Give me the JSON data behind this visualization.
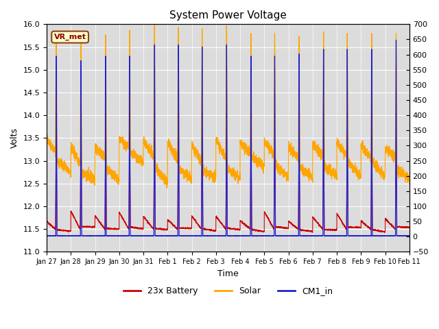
{
  "title": "System Power Voltage",
  "xlabel": "Time",
  "ylabel": "Volts",
  "ylim_left": [
    11.0,
    16.0
  ],
  "ylim_right": [
    -50,
    700
  ],
  "xtick_labels": [
    "Jan 27",
    "Jan 28",
    "Jan 29",
    "Jan 30",
    "Jan 31",
    "Feb 1",
    "Feb 2",
    "Feb 3",
    "Feb 4",
    "Feb 5",
    "Feb 6",
    "Feb 7",
    "Feb 8",
    "Feb 9",
    "Feb 10",
    "Feb 11"
  ],
  "annotation_text": "VR_met",
  "bg_color": "#dcdcdc",
  "line_colors": [
    "#cc0000",
    "#ffa500",
    "#2222cc"
  ],
  "line_labels": [
    "23x Battery",
    "Solar",
    "CM1_in"
  ],
  "n_days": 15,
  "pts_per_day": 288
}
